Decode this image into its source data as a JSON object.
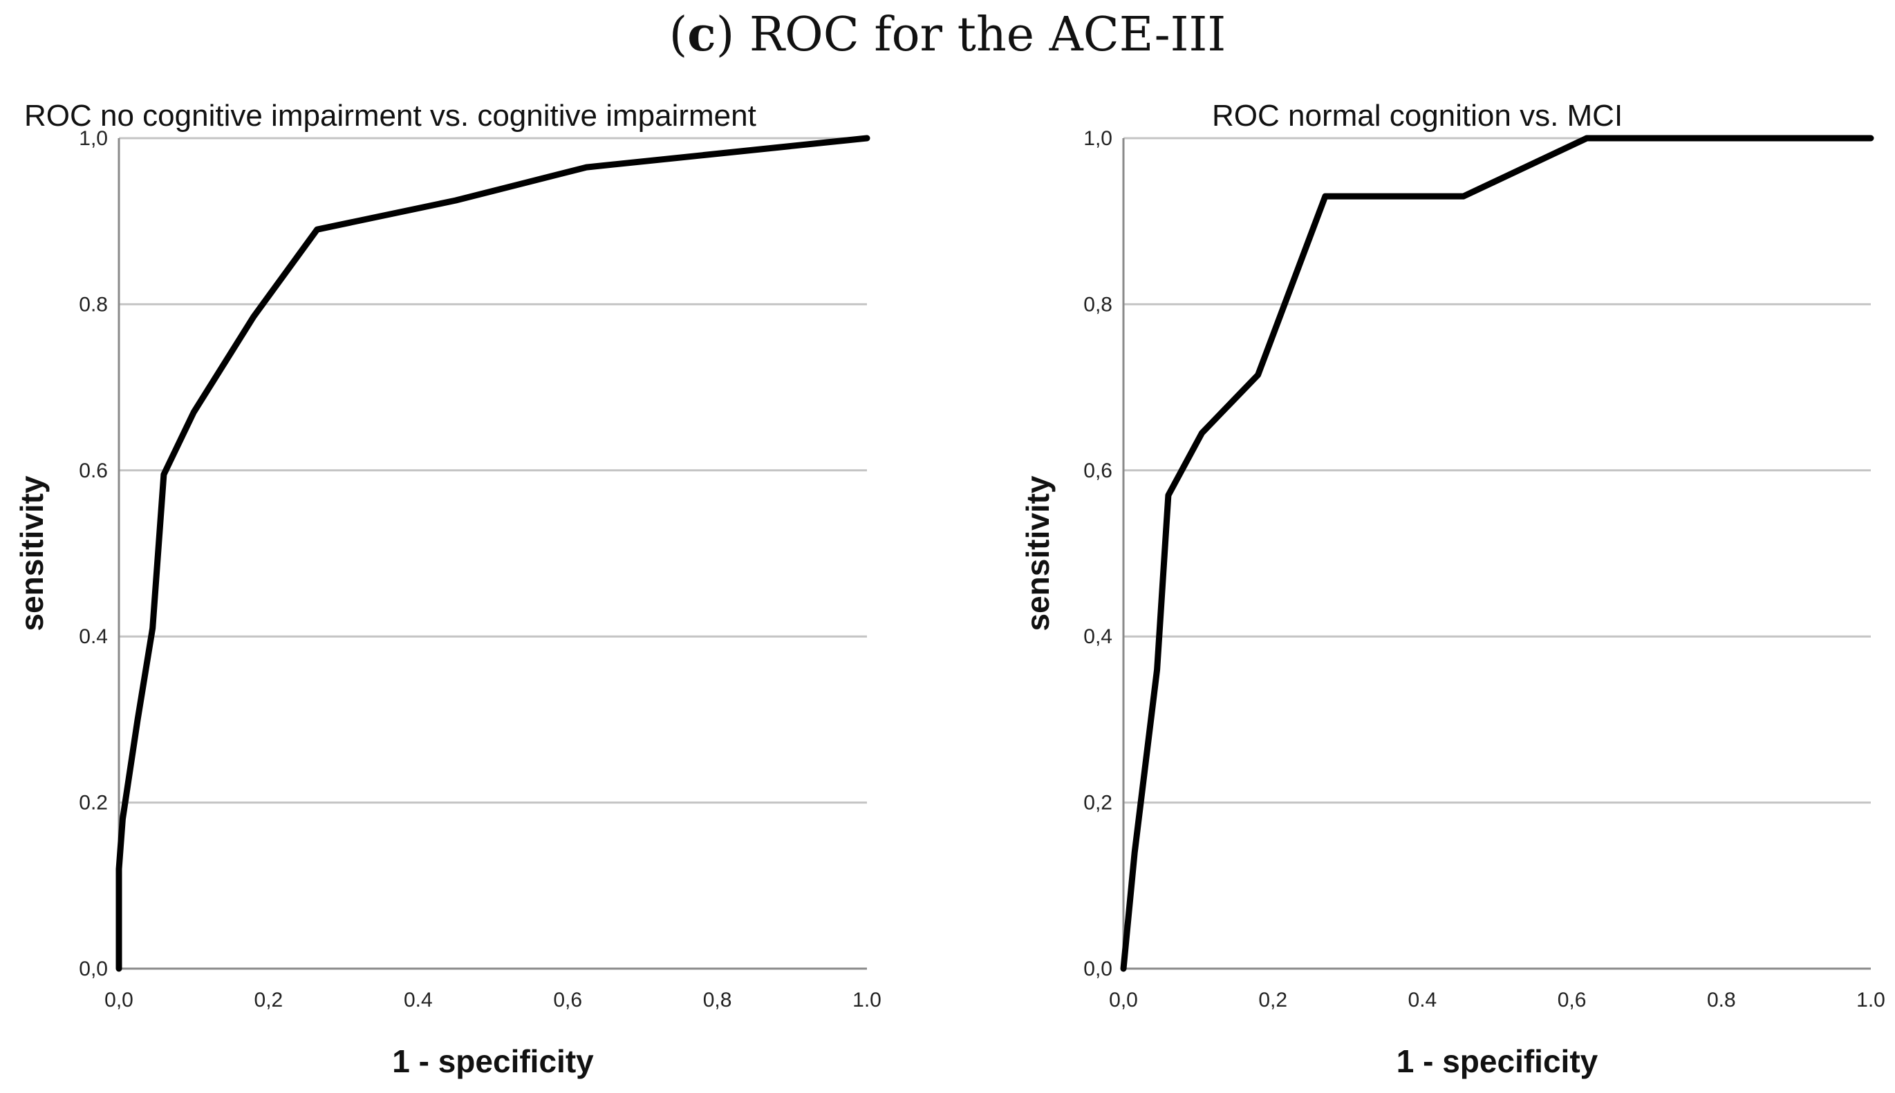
{
  "figure": {
    "label": "c",
    "caption_open": "(",
    "caption_close": ")",
    "caption_text": " ROC for the ACE-III"
  },
  "chart_data": [
    {
      "type": "line",
      "title": "ROC no cognitive impairment vs. cognitive impairment",
      "xlabel": "1 - specificity",
      "ylabel": "sensitivity",
      "xlim": [
        0,
        1
      ],
      "ylim": [
        0,
        1
      ],
      "grid": "horizontal",
      "x_ticks": [
        "0,0",
        "0,2",
        "0.4",
        "0,6",
        "0,8",
        "1.0"
      ],
      "y_ticks": [
        "0,0",
        "0.2",
        "0.4",
        "0.6",
        "0.8",
        "1,0"
      ],
      "series": [
        {
          "name": "ROC",
          "x": [
            0.0,
            0.0,
            0.005,
            0.025,
            0.045,
            0.06,
            0.1,
            0.18,
            0.265,
            0.45,
            0.625,
            1.0
          ],
          "y": [
            0.0,
            0.12,
            0.18,
            0.3,
            0.41,
            0.595,
            0.67,
            0.785,
            0.89,
            0.925,
            0.965,
            1.0
          ]
        }
      ]
    },
    {
      "type": "line",
      "title": "ROC normal cognition vs. MCI",
      "xlabel": "1 - specificity",
      "ylabel": "sensitivity",
      "xlim": [
        0,
        1
      ],
      "ylim": [
        0,
        1
      ],
      "grid": "horizontal",
      "x_ticks": [
        "0,0",
        "0,2",
        "0.4",
        "0,6",
        "0.8",
        "1.0"
      ],
      "y_ticks": [
        "0,0",
        "0,2",
        "0,4",
        "0,6",
        "0,8",
        "1,0"
      ],
      "series": [
        {
          "name": "ROC",
          "x": [
            0.0,
            0.015,
            0.045,
            0.06,
            0.105,
            0.18,
            0.27,
            0.455,
            0.62,
            1.0
          ],
          "y": [
            0.0,
            0.14,
            0.36,
            0.57,
            0.645,
            0.715,
            0.93,
            0.93,
            1.0,
            1.0
          ]
        }
      ]
    }
  ]
}
